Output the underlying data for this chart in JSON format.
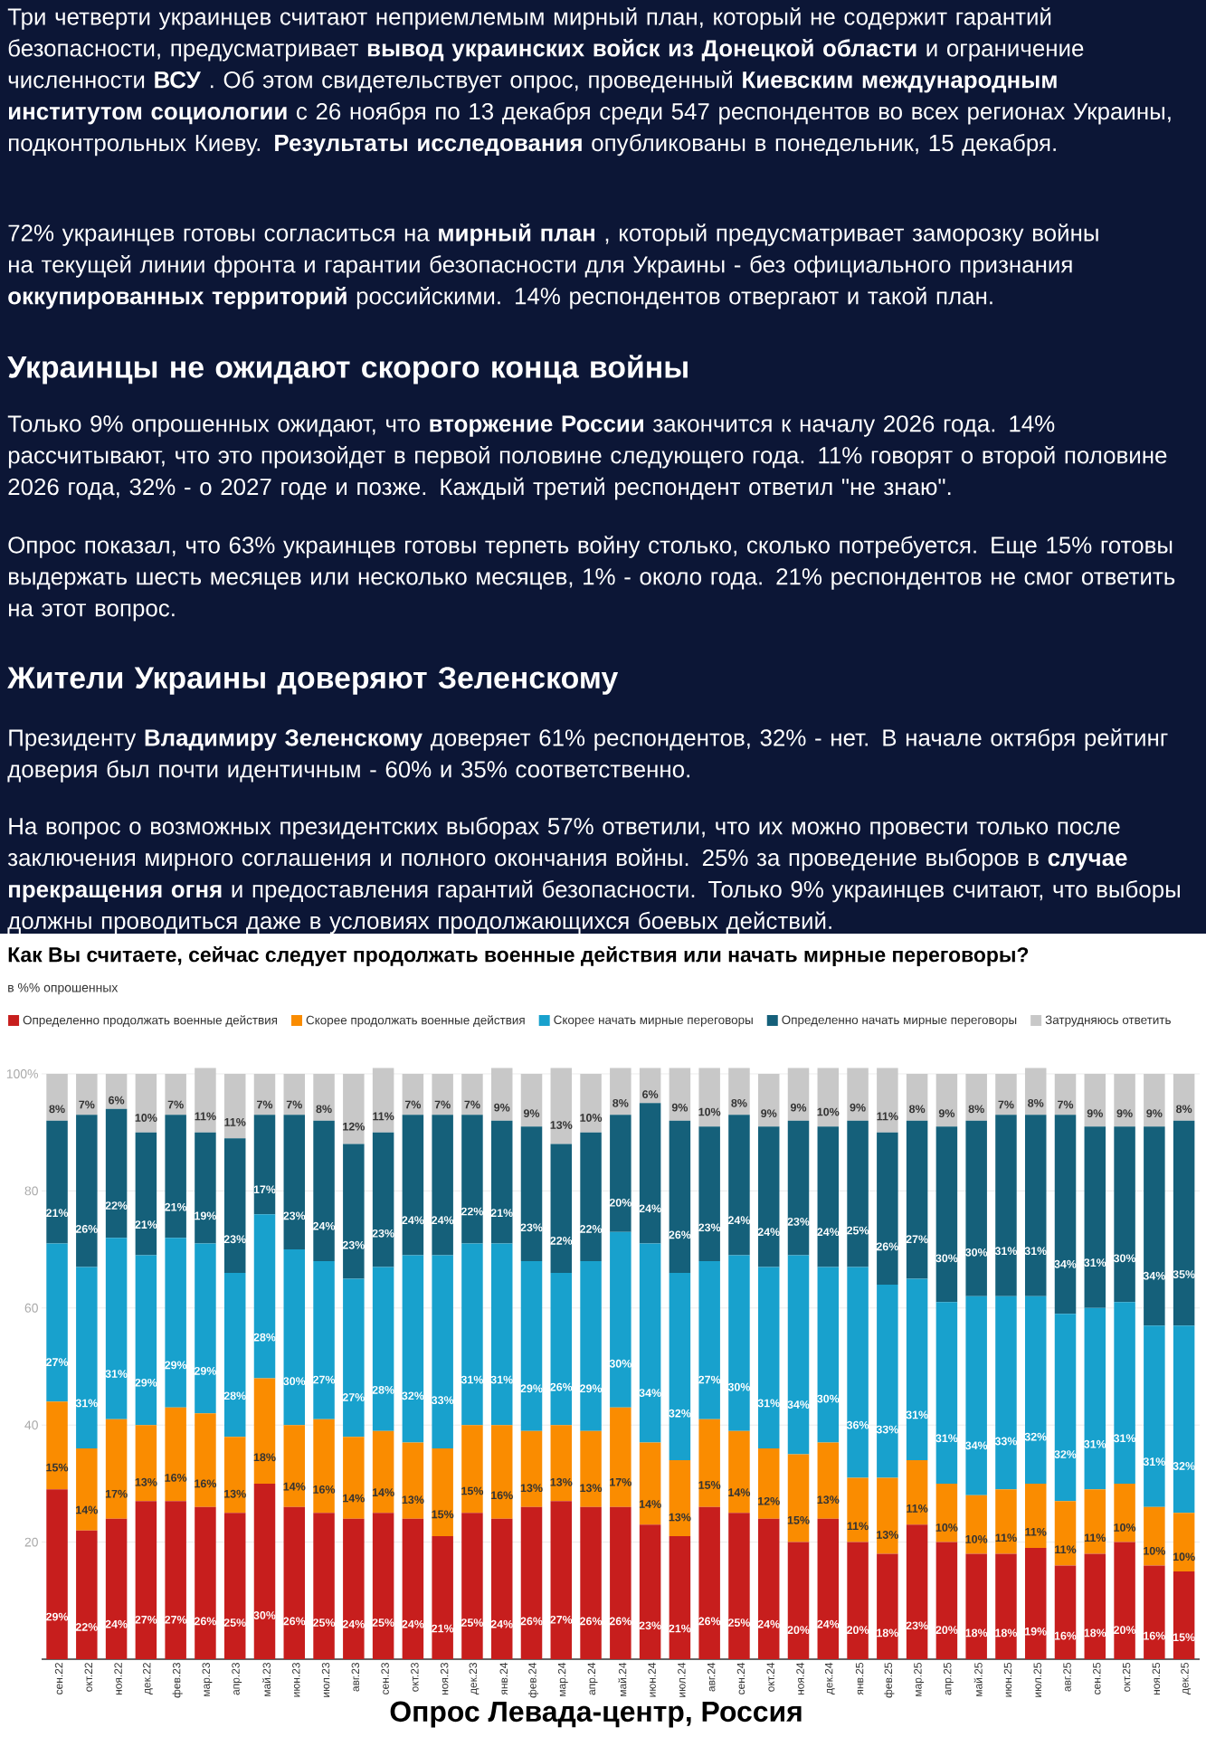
{
  "chart_data": {
    "type": "bar",
    "stacked": true,
    "title": "Как Вы считаете, сейчас следует продолжать военные действия или начать мирные переговоры?",
    "subtitle": "в %% опрошенных",
    "annotations": [
      "Три четверти украинцев считают неприемлемым мирный план, который не содержит гарантий безопасности, предусматривает **вывод украинских войск из Донецкой области** и ограничение численности **ВСУ** . Об этом свидетельствует опрос, проведенный **Киевским международным институтом социологии** с 26 ноября по 13 декабря среди 547 респондентов во всех регионах Украины, подконтрольных Киеву. **Результаты исследования** опубликованы в понедельник, 15 декабря.",
      "72% украинцев готовы согласиться на **мирный план** , который предусматривает заморозку войны на текущей линии фронта и гарантии безопасности для Украины - без официального признания **оккупированных территорий** российскими. 14% респондентов отвергают и такой план.",
      "Украинцы не ожидают скорого конца войны",
      "Только 9% опрошенных ожидают, что **вторжение России** закончится к началу 2026 года. 14% рассчитывают, что это произойдет в первой половине следующего года. 11% говорят о второй половине 2026 года, 32% - о 2027 годе и позже. Каждый третий респондент ответил \"не знаю\".",
      "Опрос показал, что 63% украинцев готовы терпеть войну столько, сколько потребуется. Еще 15% готовы выдержать шесть месяцев или несколько месяцев, 1% - около года. 21% респондентов не смог ответить на этот вопрос.",
      "Жители Украины доверяют Зеленскому",
      "Президенту **Владимиру Зеленскому** доверяет 61% респондентов, 32% - нет. В начале октября рейтинг доверия был почти идентичным - 60% и 35% соответственно.",
      "На вопрос о возможных президентских выборах 57% ответили, что их можно провести только после заключения мирного соглашения и полного окончания войны. 25% за проведение выборов в **случае прекращения огня** и предоставления гарантий безопасности. Только 9% украинцев считают, что выборы должны проводиться даже в условиях продолжающихся боевых действий.",
      "Опрос Левада-центр, Россия"
    ],
    "categories": [
      "сен.22",
      "окт.22",
      "ноя.22",
      "дек.22",
      "фев.23",
      "мар.23",
      "апр.23",
      "май.23",
      "июн.23",
      "июл.23",
      "авг.23",
      "сен.23",
      "окт.23",
      "ноя.23",
      "дек.23",
      "янв.24",
      "фев.24",
      "мар.24",
      "апр.24",
      "май.24",
      "июн.24",
      "июл.24",
      "авг.24",
      "сен.24",
      "окт.24",
      "ноя.24",
      "дек.24",
      "янв.25",
      "фев.25",
      "мар.25",
      "апр.25",
      "май.25",
      "июн.25",
      "июл.25",
      "авг.25",
      "сен.25",
      "окт.25",
      "ноя.25",
      "дек.25"
    ],
    "series": [
      {
        "name": "Определенно продолжать военные действия",
        "color": "#c71e1d",
        "values": [
          29,
          22,
          24,
          27,
          27,
          26,
          25,
          30,
          26,
          25,
          24,
          25,
          24,
          21,
          25,
          24,
          26,
          27,
          26,
          26,
          23,
          21,
          26,
          25,
          24,
          20,
          24,
          20,
          18,
          23,
          20,
          18,
          18,
          19,
          16,
          18,
          20,
          16,
          15
        ],
        "value_labels": [
          "29%",
          "22%",
          "24%",
          "27%",
          "27%",
          "26%",
          "25%",
          "30%",
          "26%",
          "25%",
          "24%",
          "25%",
          "24%",
          "21%",
          "25%",
          "24%",
          "26%",
          "27%",
          "26%",
          "26%",
          "23%",
          "21%",
          "26%",
          "25%",
          "24%",
          "20%",
          "24%",
          "20%",
          "18%",
          "23%",
          "20%",
          "18%",
          "18%",
          "19%",
          "16%",
          "18%",
          "20%",
          "16%",
          "15%"
        ]
      },
      {
        "name": "Скорее продолжать военные действия",
        "color": "#fa8c00",
        "values": [
          15,
          14,
          17,
          13,
          16,
          16,
          13,
          18,
          14,
          16,
          14,
          14,
          13,
          15,
          15,
          16,
          13,
          13,
          13,
          17,
          14,
          13,
          15,
          14,
          12,
          15,
          13,
          11,
          13,
          11,
          10,
          10,
          11,
          11,
          11,
          11,
          10,
          10,
          10
        ],
        "value_labels": [
          "15%",
          "14%",
          "17%",
          "13%",
          "16%",
          "16%",
          "13%",
          "18%",
          "14%",
          "16%",
          "14%",
          "14%",
          "13%",
          "15%",
          "15%",
          "16%",
          "13%",
          "13%",
          "13%",
          "17%",
          "14%",
          "13%",
          "15%",
          "14%",
          "12%",
          "15%",
          "13%",
          "11%",
          "13%",
          "11%",
          "10%",
          "10%",
          "11%",
          "11%",
          "11%",
          "11%",
          "10%",
          "10%",
          "10%"
        ]
      },
      {
        "name": "Скорее начать мирные переговоры",
        "color": "#18a1cd",
        "values": [
          27,
          31,
          31,
          29,
          29,
          29,
          28,
          28,
          30,
          27,
          27,
          28,
          32,
          33,
          31,
          31,
          29,
          26,
          29,
          30,
          34,
          32,
          27,
          30,
          31,
          34,
          30,
          36,
          33,
          31,
          31,
          34,
          33,
          32,
          32,
          31,
          31,
          31,
          32
        ],
        "value_labels": [
          "27%",
          "31%",
          "31%",
          "29%",
          "29%",
          "29%",
          "28%",
          "28%",
          "30%",
          "27%",
          "27%",
          "28%",
          "32%",
          "33%",
          "31%",
          "31%",
          "29%",
          "26%",
          "29%",
          "30%",
          "34%",
          "32%",
          "27%",
          "30%",
          "31%",
          "34%",
          "30%",
          "36%",
          "33%",
          "31%",
          "31%",
          "34%",
          "33%",
          "32%",
          "32%",
          "31%",
          "31%",
          "31%",
          "32%"
        ]
      },
      {
        "name": "Определенно начать мирные переговоры",
        "color": "#15607a",
        "values": [
          21,
          26,
          22,
          21,
          21,
          19,
          23,
          17,
          23,
          24,
          23,
          23,
          24,
          24,
          22,
          21,
          23,
          22,
          22,
          20,
          24,
          26,
          23,
          24,
          24,
          23,
          24,
          25,
          26,
          27,
          30,
          30,
          31,
          31,
          34,
          31,
          30,
          34,
          35
        ],
        "value_labels": [
          "21%",
          "26%",
          "22%",
          "21%",
          "21%",
          "19%",
          "23%",
          "17%",
          "23%",
          "24%",
          "23%",
          "23%",
          "24%",
          "24%",
          "22%",
          "21%",
          "23%",
          "22%",
          "22%",
          "20%",
          "24%",
          "26%",
          "23%",
          "24%",
          "24%",
          "23%",
          "24%",
          "25%",
          "26%",
          "27%",
          "30%",
          "30%",
          "31%",
          "31%",
          "34%",
          "31%",
          "30%",
          "34%",
          "35%"
        ]
      },
      {
        "name": "Затрудняюсь ответить",
        "color": "#c8c8c8",
        "values": [
          8,
          7,
          6,
          10,
          7,
          11,
          11,
          7,
          7,
          8,
          12,
          11,
          7,
          7,
          7,
          9,
          9,
          13,
          10,
          8,
          6,
          9,
          10,
          8,
          9,
          9,
          10,
          9,
          11,
          8,
          9,
          8,
          7,
          8,
          7,
          9,
          9,
          9,
          8
        ],
        "value_labels": [
          "8%",
          "7%",
          "6%",
          "10%",
          "7%",
          "11%",
          "11%",
          "7%",
          "7%",
          "8%",
          "12%",
          "11%",
          "7%",
          "7%",
          "7%",
          "9%",
          "9%",
          "13%",
          "10%",
          "8%",
          "6%",
          "9%",
          "10%",
          "8%",
          "9%",
          "9%",
          "10%",
          "9%",
          "11%",
          "8%",
          "9%",
          "8%",
          "7%",
          "8%",
          "7%",
          "9%",
          "9%",
          "9%",
          "8%"
        ]
      }
    ],
    "ylim": [
      0,
      101
    ],
    "yticks": [
      20,
      40,
      60,
      80,
      {
        "value": 100,
        "label": "100%"
      }
    ],
    "grid": "y",
    "legend": "top"
  }
}
